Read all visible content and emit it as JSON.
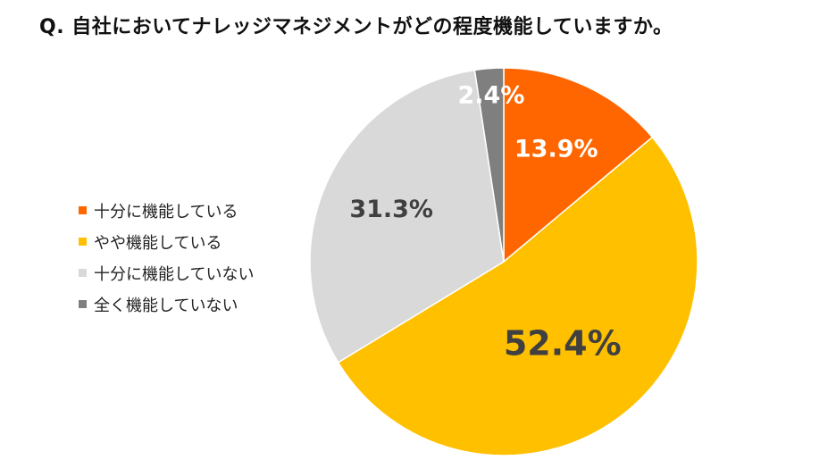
{
  "title": "Q. 自社においてナレッジマネジメントがどの程度機能していますか。",
  "chart_data": {
    "type": "pie",
    "start": "12 o'clock",
    "direction": "clockwise",
    "legend_position": "left",
    "slices": [
      {
        "label": "十分に機能している",
        "value": 13.9,
        "display": "13.9%",
        "color": "#ff6600",
        "label_color": "#ffffff"
      },
      {
        "label": "やや機能している",
        "value": 52.4,
        "display": "52.4%",
        "color": "#ffc000",
        "label_color": "#404040"
      },
      {
        "label": "十分に機能していない",
        "value": 31.3,
        "display": "31.3%",
        "color": "#d9d9d9",
        "label_color": "#404040"
      },
      {
        "label": "全く機能していない",
        "value": 2.4,
        "display": "2.4%",
        "color": "#7f7f7f",
        "label_color": "#ffffff"
      }
    ]
  }
}
